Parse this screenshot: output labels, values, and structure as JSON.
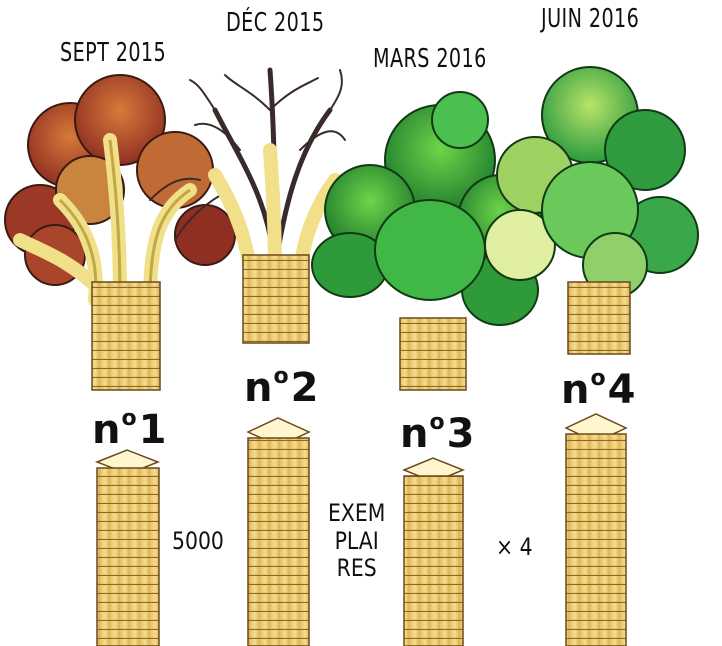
{
  "issues": [
    {
      "date": "SEPT 2015",
      "n": "n",
      "o": "o",
      "digit": "1"
    },
    {
      "date": "DÉC 2015",
      "n": "n",
      "o": "o",
      "digit": "2"
    },
    {
      "date": "MARS 2016",
      "n": "n",
      "o": "o",
      "digit": "3"
    },
    {
      "date": "JUIN 2016",
      "n": "n",
      "o": "o",
      "digit": "4"
    }
  ],
  "notes": {
    "count": "5000",
    "word_lines": [
      "EXEM",
      "PLAI",
      "RES"
    ],
    "multiplier": "× 4"
  },
  "colors": {
    "paper": "#f3d27a",
    "paper_dark": "#c9a24a",
    "tree1": "#b5482a",
    "tree2": "#6b3a2a",
    "tree3": "#2f9a3a",
    "tree4": "#3fa84a",
    "ink": "#111111"
  }
}
